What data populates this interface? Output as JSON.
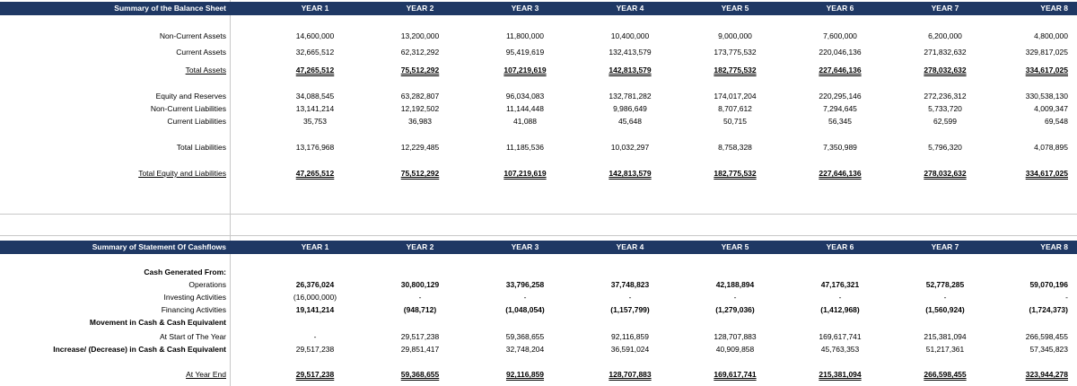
{
  "balance_sheet": {
    "title": "Summary of the Balance Sheet",
    "years": [
      "YEAR 1",
      "YEAR 2",
      "YEAR 3",
      "YEAR 4",
      "YEAR 5",
      "YEAR 6",
      "YEAR 7",
      "YEAR 8"
    ],
    "rows": [
      {
        "label": "Non-Current Assets",
        "values": [
          "14,600,000",
          "13,200,000",
          "11,800,000",
          "10,400,000",
          "9,000,000",
          "7,600,000",
          "6,200,000",
          "4,800,000"
        ]
      },
      {
        "label": "Current Assets",
        "values": [
          "32,665,512",
          "62,312,292",
          "95,419,619",
          "132,413,579",
          "173,775,532",
          "220,046,136",
          "271,832,632",
          "329,817,025"
        ]
      },
      {
        "label": "Total Assets",
        "values": [
          "47,265,512",
          "75,512,292",
          "107,219,619",
          "142,813,579",
          "182,775,532",
          "227,646,136",
          "278,032,632",
          "334,617,025"
        ]
      },
      {
        "label": "Equity and Reserves",
        "values": [
          "34,088,545",
          "63,282,807",
          "96,034,083",
          "132,781,282",
          "174,017,204",
          "220,295,146",
          "272,236,312",
          "330,538,130"
        ]
      },
      {
        "label": "Non-Current Liabilities",
        "values": [
          "13,141,214",
          "12,192,502",
          "11,144,448",
          "9,986,649",
          "8,707,612",
          "7,294,645",
          "5,733,720",
          "4,009,347"
        ]
      },
      {
        "label": "Current Liabilities",
        "values": [
          "35,753",
          "36,983",
          "41,088",
          "45,648",
          "50,715",
          "56,345",
          "62,599",
          "69,548"
        ]
      },
      {
        "label": "Total Liabilities",
        "values": [
          "13,176,968",
          "12,229,485",
          "11,185,536",
          "10,032,297",
          "8,758,328",
          "7,350,989",
          "5,796,320",
          "4,078,895"
        ]
      },
      {
        "label": "Total Equity and Liabilities",
        "values": [
          "47,265,512",
          "75,512,292",
          "107,219,619",
          "142,813,579",
          "182,775,532",
          "227,646,136",
          "278,032,632",
          "334,617,025"
        ]
      }
    ]
  },
  "cashflows": {
    "title": "Summary of Statement Of Cashflows",
    "years": [
      "YEAR 1",
      "YEAR 2",
      "YEAR 3",
      "YEAR 4",
      "YEAR 5",
      "YEAR 6",
      "YEAR 7",
      "YEAR 8"
    ],
    "rows": [
      {
        "label": "Cash Generated From:",
        "values": [
          "",
          "",
          "",
          "",
          "",
          "",
          "",
          ""
        ]
      },
      {
        "label": "Operations",
        "values": [
          "26,376,024",
          "30,800,129",
          "33,796,258",
          "37,748,823",
          "42,188,894",
          "47,176,321",
          "52,778,285",
          "59,070,196"
        ]
      },
      {
        "label": "Investing Activities",
        "values": [
          "(16,000,000)",
          "-",
          "-",
          "-",
          "-",
          "-",
          "-",
          "-"
        ]
      },
      {
        "label": "Financing Activities",
        "values": [
          "19,141,214",
          "(948,712)",
          "(1,048,054)",
          "(1,157,799)",
          "(1,279,036)",
          "(1,412,968)",
          "(1,560,924)",
          "(1,724,373)"
        ]
      },
      {
        "label": "Movement in Cash & Cash Equivalent",
        "values": [
          "",
          "",
          "",
          "",
          "",
          "",
          "",
          ""
        ]
      },
      {
        "label": "At Start of The Year",
        "values": [
          "-",
          "29,517,238",
          "59,368,655",
          "92,116,859",
          "128,707,883",
          "169,617,741",
          "215,381,094",
          "266,598,455"
        ]
      },
      {
        "label": "Increase/ (Decrease) in Cash & Cash Equivalent",
        "values": [
          "29,517,238",
          "29,851,417",
          "32,748,204",
          "36,591,024",
          "40,909,858",
          "45,763,353",
          "51,217,361",
          "57,345,823"
        ]
      },
      {
        "label": "At Year End",
        "values": [
          "29,517,238",
          "59,368,655",
          "92,116,859",
          "128,707,883",
          "169,617,741",
          "215,381,094",
          "266,598,455",
          "323,944,278"
        ]
      }
    ]
  }
}
